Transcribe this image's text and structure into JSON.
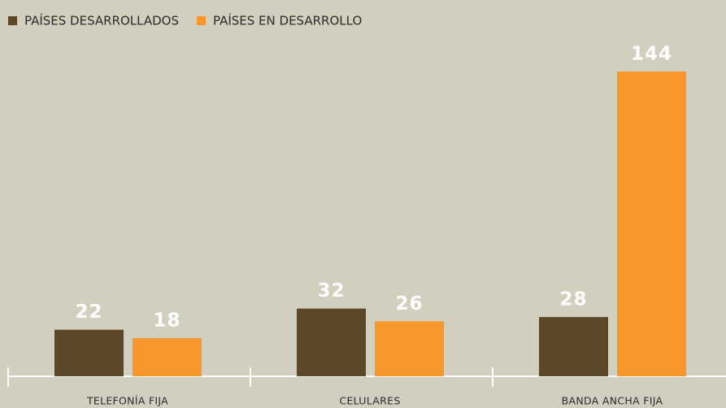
{
  "chart_data": {
    "type": "bar",
    "categories": [
      "TELEFONÍA FIJA",
      "CELULARES",
      "BANDA ANCHA FIJA"
    ],
    "series": [
      {
        "name": "PAÍSES DESARROLLADOS",
        "color": "#5c4729",
        "values": [
          22,
          32,
          28
        ]
      },
      {
        "name": "PAÍSES EN DESARROLLO",
        "color": "#f7962b",
        "values": [
          18,
          26,
          144
        ]
      }
    ]
  }
}
